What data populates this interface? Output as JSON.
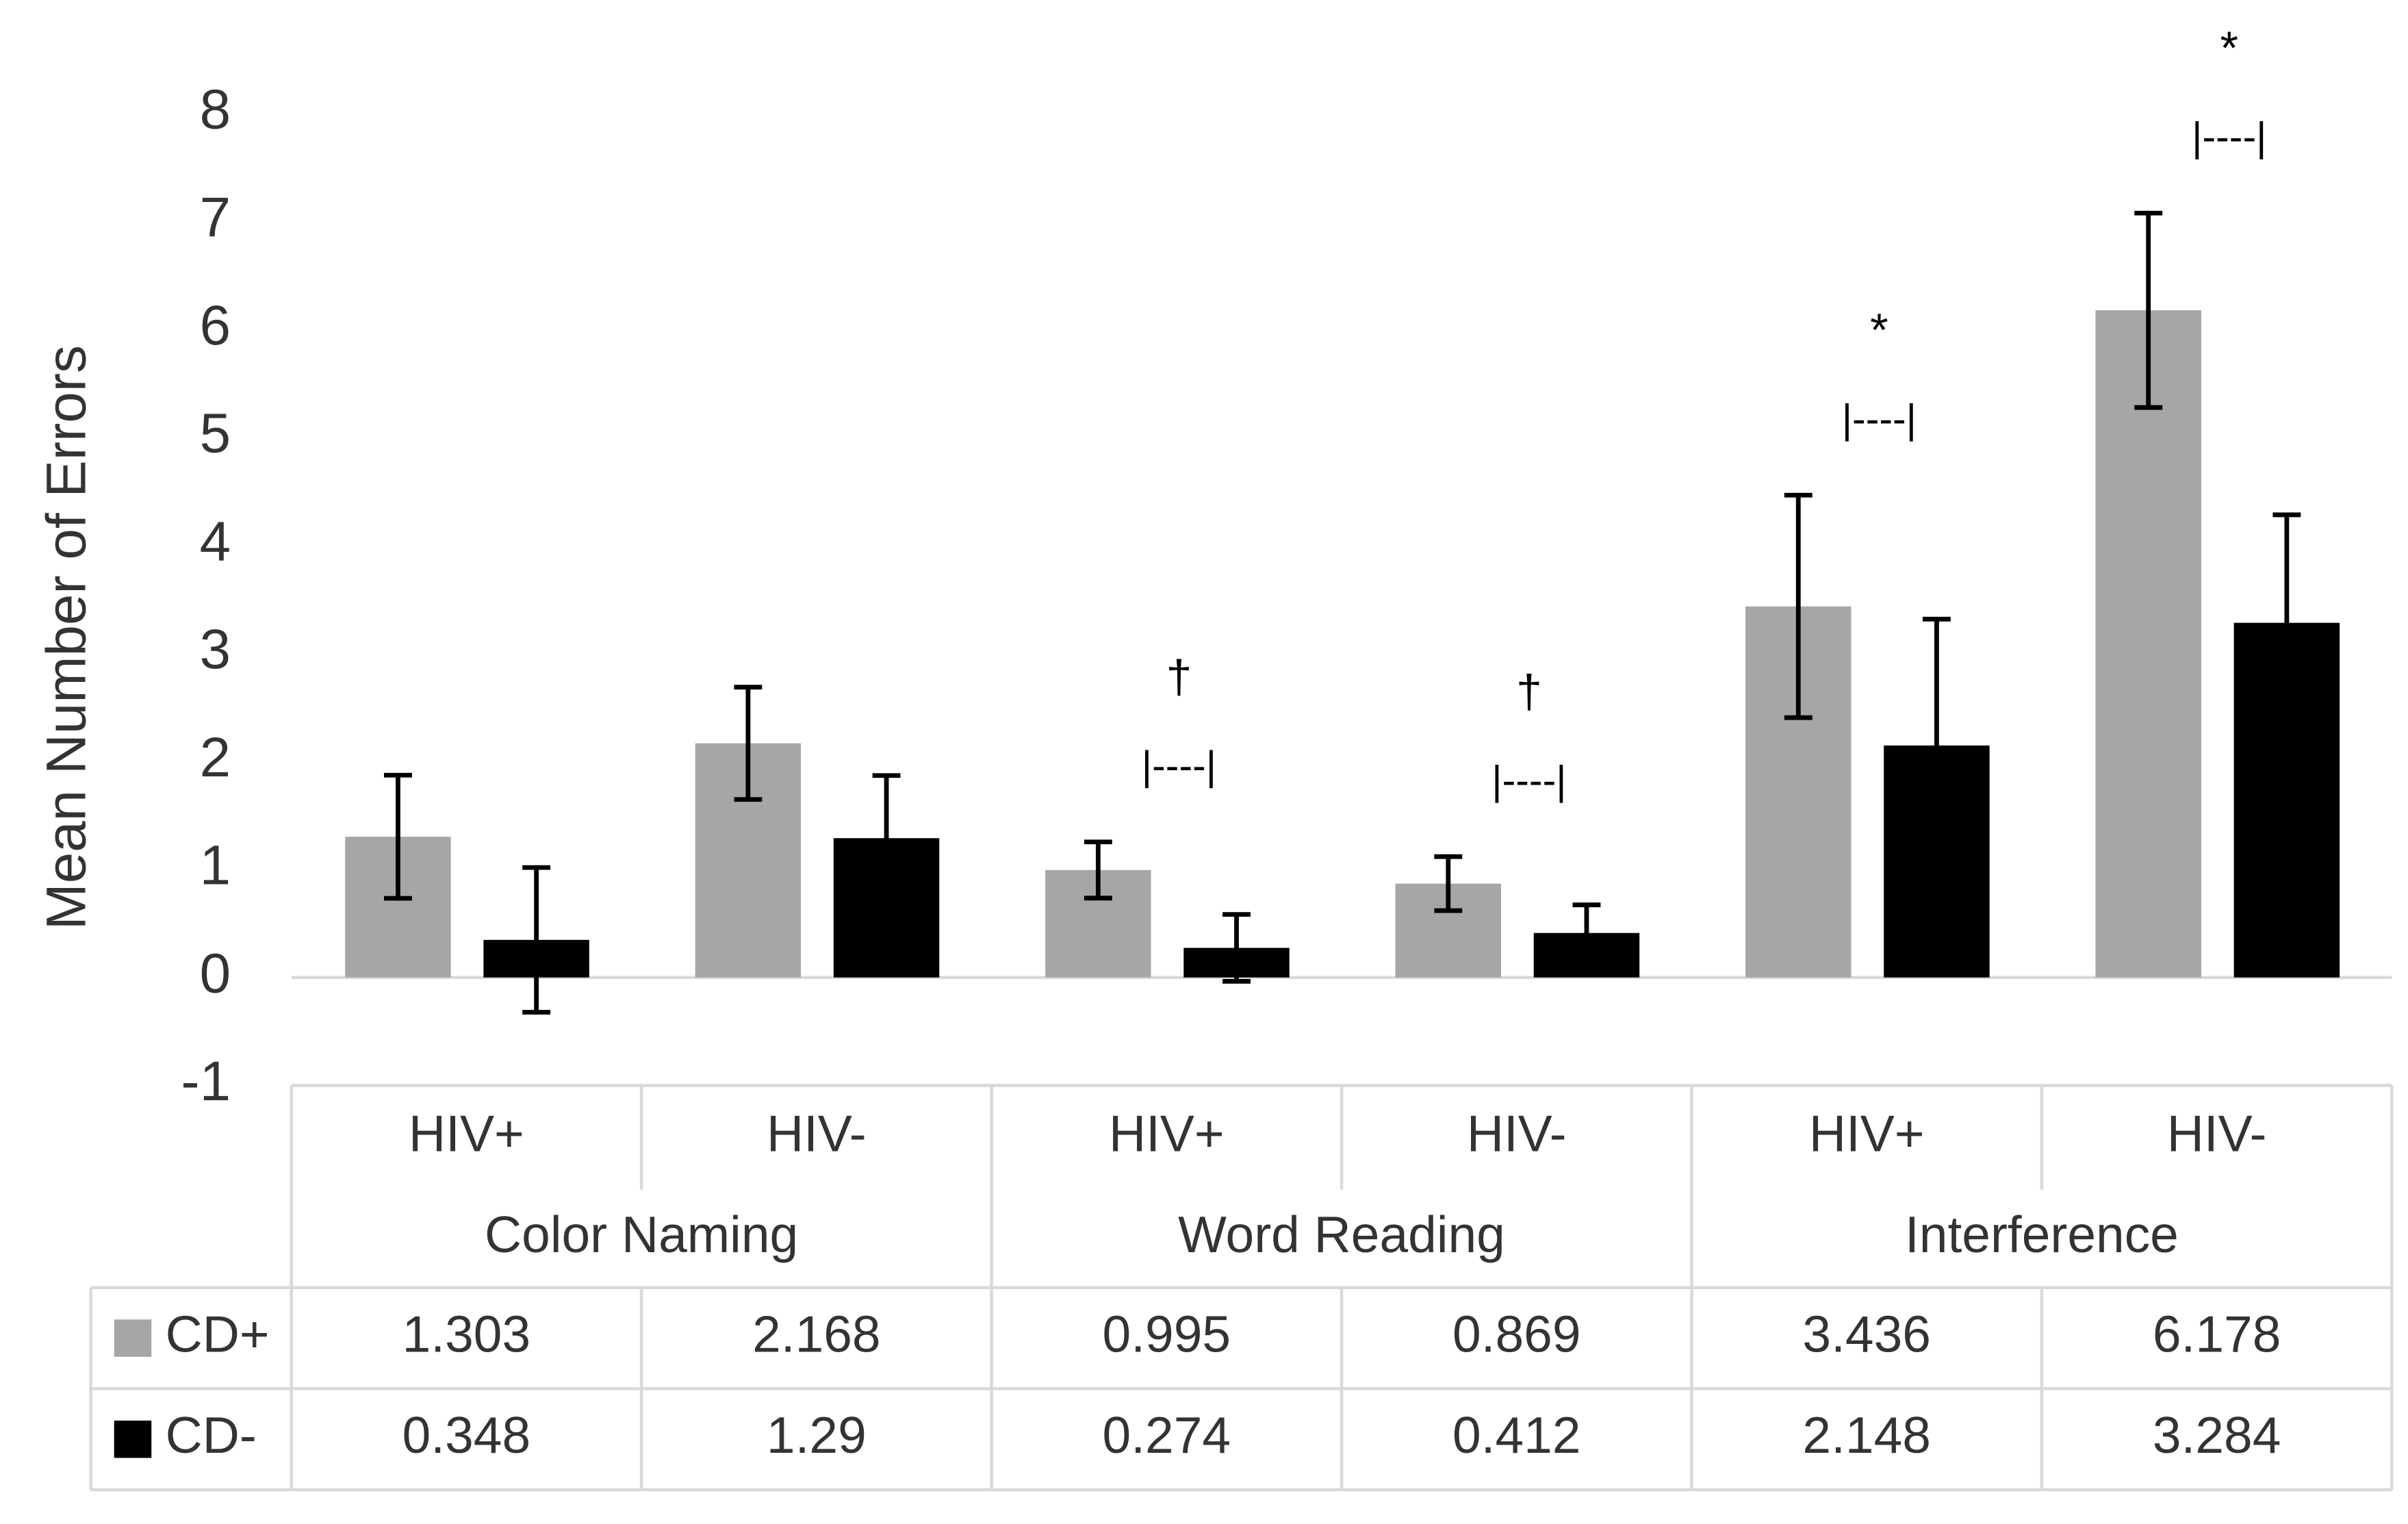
{
  "chart_data": {
    "type": "bar",
    "y_label": "Mean Number of Errors",
    "categories": [
      "HIV+",
      "HIV-",
      "HIV+",
      "HIV-",
      "HIV+",
      "HIV-"
    ],
    "groups": [
      "Color Naming",
      "Word Reading",
      "Interference"
    ],
    "series": [
      {
        "name": "CD+",
        "color": "#a6a6a6",
        "values": [
          1.303,
          2.168,
          0.995,
          0.869,
          3.436,
          6.178
        ],
        "error": [
          0.57,
          0.52,
          0.26,
          0.25,
          1.03,
          0.9
        ]
      },
      {
        "name": "CD-",
        "color": "#000000",
        "values": [
          0.348,
          1.29,
          0.274,
          0.412,
          2.148,
          3.284
        ],
        "error": [
          0.67,
          0.58,
          0.31,
          0.26,
          1.17,
          1.0
        ]
      }
    ],
    "annotations": [
      null,
      null,
      {
        "symbol": "†",
        "bracket": "|----|"
      },
      {
        "symbol": "†",
        "bracket": "|----|"
      },
      {
        "symbol": "*",
        "bracket": "|----|"
      },
      {
        "symbol": "*",
        "bracket": "|----|"
      }
    ],
    "ylim": [
      -1,
      8
    ],
    "yticks": [
      -1,
      0,
      1,
      2,
      3,
      4,
      5,
      6,
      7,
      8
    ]
  }
}
